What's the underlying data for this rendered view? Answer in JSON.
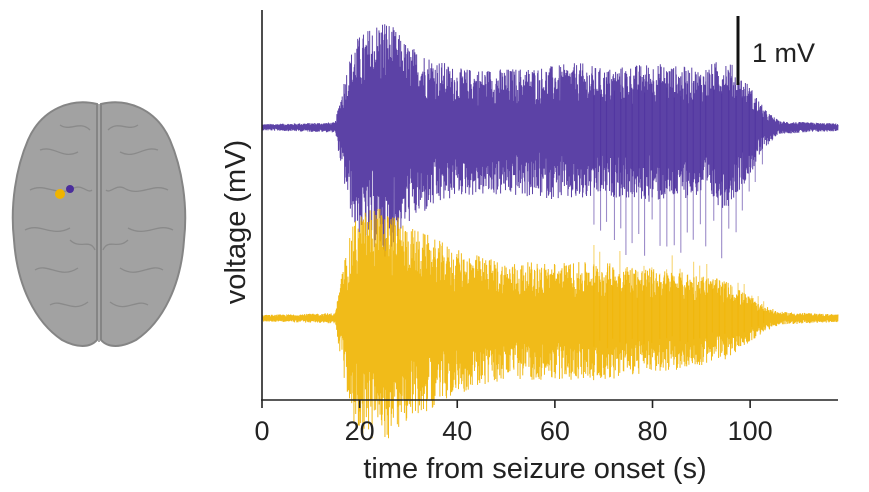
{
  "chart_data": {
    "type": "line",
    "title": "",
    "xlabel": "time from seizure onset (s)",
    "ylabel": "voltage (mV)",
    "xlim": [
      0,
      118
    ],
    "xticks": [
      "0",
      "20",
      "40",
      "60",
      "80",
      "100"
    ],
    "xtick_values": [
      0,
      20,
      40,
      60,
      80,
      100
    ],
    "grid": false,
    "scalebar": {
      "label": "1 mV",
      "value_mV": 1
    },
    "series": [
      {
        "color": "#4a2d9c",
        "onset_s": 17,
        "envelope": {
          "t": [
            0,
            15,
            17,
            19,
            22,
            25,
            30,
            40,
            50,
            60,
            65,
            70,
            80,
            90,
            95,
            100,
            103,
            106,
            118
          ],
          "amp_mV": [
            0.05,
            0.08,
            0.9,
            1.5,
            1.7,
            1.9,
            1.4,
            1.0,
            1.0,
            1.05,
            1.1,
            1.0,
            1.1,
            1.0,
            1.2,
            0.7,
            0.3,
            0.1,
            0.06
          ]
        }
      },
      {
        "color": "#f0b400",
        "onset_s": 17,
        "envelope": {
          "t": [
            0,
            15,
            17,
            19,
            22,
            25,
            30,
            40,
            50,
            60,
            70,
            80,
            90,
            95,
            100,
            103,
            106,
            118
          ],
          "amp_mV": [
            0.05,
            0.08,
            1.0,
            1.6,
            1.8,
            1.8,
            1.5,
            1.1,
            0.9,
            0.9,
            0.9,
            0.8,
            0.7,
            0.6,
            0.35,
            0.2,
            0.1,
            0.06
          ]
        }
      }
    ]
  },
  "brain_inset": {
    "electrode_colors": [
      "#4a2d9c",
      "#f0b400"
    ]
  }
}
